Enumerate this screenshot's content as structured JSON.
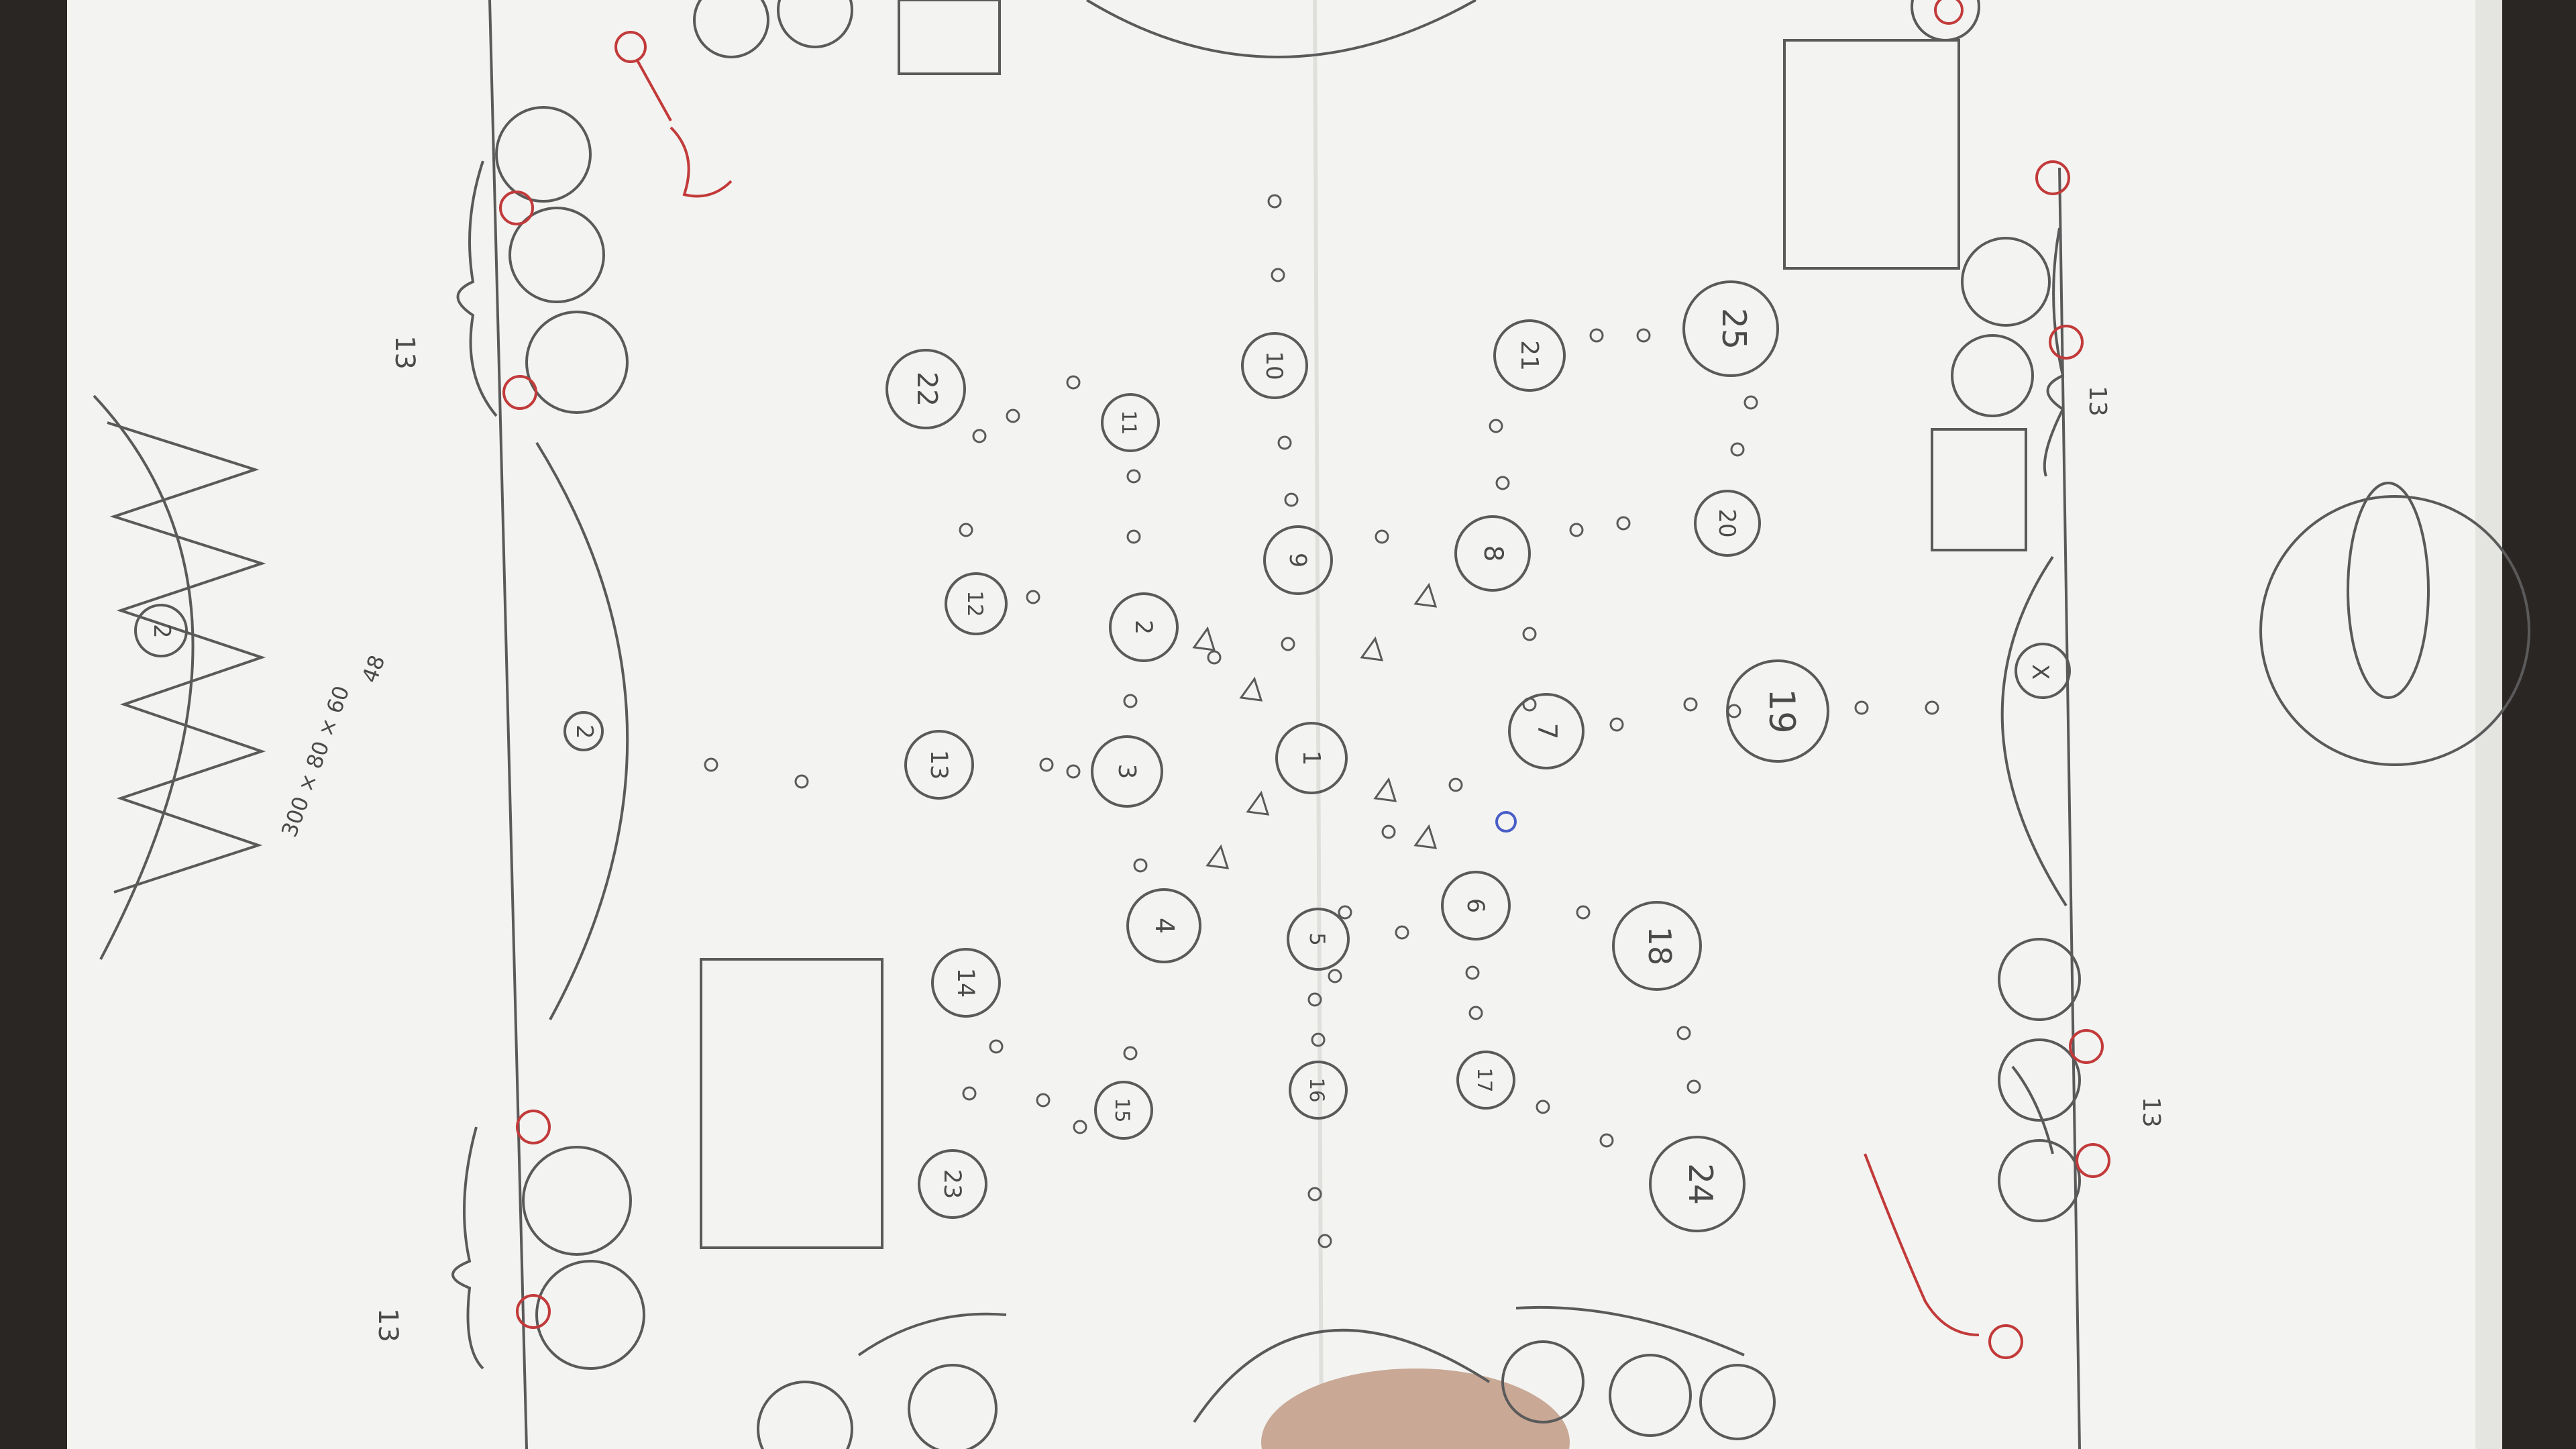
{
  "photo": {
    "subject": "sketch",
    "colors": {
      "desk": "#2a2624",
      "paper": "#f3f4f1",
      "pencil": "#5a5a5a",
      "red_ink": "#c23a3a",
      "blue_ink": "#4a5ec8"
    }
  },
  "tables": [
    {
      "label": "1"
    },
    {
      "label": "2"
    },
    {
      "label": "3"
    },
    {
      "label": "4"
    },
    {
      "label": "5"
    },
    {
      "label": "6"
    },
    {
      "label": "7"
    },
    {
      "label": "8"
    },
    {
      "label": "9"
    },
    {
      "label": "10"
    },
    {
      "label": "11"
    },
    {
      "label": "12"
    },
    {
      "label": "13"
    },
    {
      "label": "14"
    },
    {
      "label": "15"
    },
    {
      "label": "16"
    },
    {
      "label": "17"
    },
    {
      "label": "18"
    },
    {
      "label": "19"
    },
    {
      "label": "20"
    },
    {
      "label": "21"
    },
    {
      "label": "22"
    },
    {
      "label": "23"
    },
    {
      "label": "24"
    },
    {
      "label": "25"
    }
  ],
  "notes": {
    "sofa_count_1": "13",
    "sofa_count_2": "13",
    "sofa_count_3": "13",
    "sofa_count_4": "13",
    "guest_stage": "2",
    "left_stage": "2",
    "round_x": "X",
    "dims_a": "300 × 80 × 60",
    "dims_b": "48"
  }
}
